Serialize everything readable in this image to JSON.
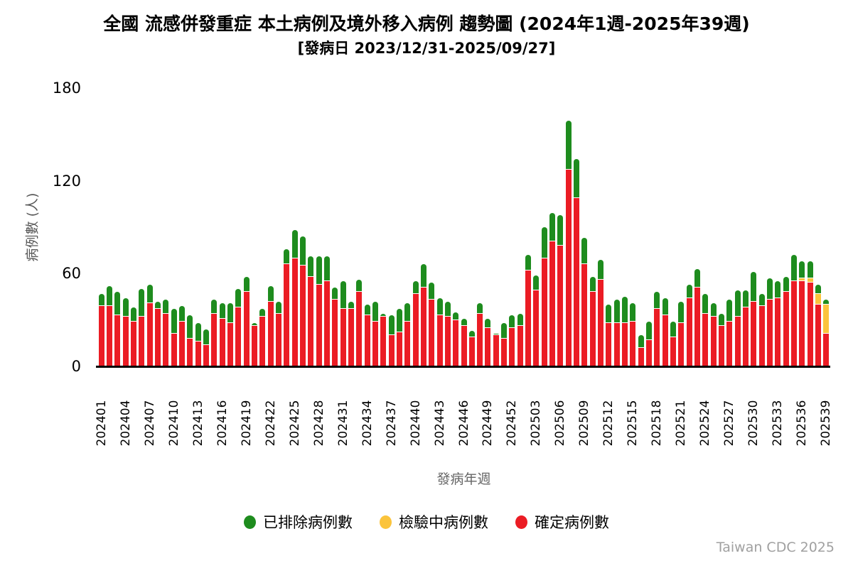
{
  "title": {
    "line1": "全國 流感併發重症 本土病例及境外移入病例 趨勢圖 (2024年1週-2025年39週)",
    "line2": "[發病日 2023/12/31-2025/09/27]"
  },
  "y_axis": {
    "title": "病例數 (人)",
    "ticks": [
      0,
      60,
      120,
      180
    ],
    "max": 180
  },
  "x_axis": {
    "title": "發病年週",
    "tick_every": 3
  },
  "legend": [
    {
      "label": "已排除病例數",
      "color": "#1E8C1E"
    },
    {
      "label": "檢驗中病例數",
      "color": "#FBC43C"
    },
    {
      "label": "確定病例數",
      "color": "#EB1C24"
    }
  ],
  "footer": "Taiwan CDC 2025",
  "chart_data": {
    "type": "bar",
    "stacked": true,
    "grid": false,
    "legend_position": "bottom",
    "ylim": [
      0,
      180
    ],
    "categories": [
      "202401",
      "202402",
      "202403",
      "202404",
      "202405",
      "202406",
      "202407",
      "202408",
      "202409",
      "202410",
      "202411",
      "202412",
      "202413",
      "202414",
      "202415",
      "202416",
      "202417",
      "202418",
      "202419",
      "202420",
      "202421",
      "202422",
      "202423",
      "202424",
      "202425",
      "202426",
      "202427",
      "202428",
      "202429",
      "202430",
      "202431",
      "202432",
      "202433",
      "202434",
      "202435",
      "202436",
      "202437",
      "202438",
      "202439",
      "202440",
      "202441",
      "202442",
      "202443",
      "202444",
      "202445",
      "202446",
      "202447",
      "202448",
      "202449",
      "202450",
      "202451",
      "202452",
      "202501",
      "202502",
      "202503",
      "202504",
      "202505",
      "202506",
      "202507",
      "202508",
      "202509",
      "202510",
      "202511",
      "202512",
      "202513",
      "202514",
      "202515",
      "202516",
      "202517",
      "202518",
      "202519",
      "202520",
      "202521",
      "202522",
      "202523",
      "202524",
      "202525",
      "202526",
      "202527",
      "202528",
      "202529",
      "202530",
      "202531",
      "202532",
      "202533",
      "202534",
      "202535",
      "202536",
      "202537",
      "202538",
      "202539"
    ],
    "x_tick_labels": [
      "202401",
      "202404",
      "202407",
      "202410",
      "202413",
      "202416",
      "202419",
      "202422",
      "202425",
      "202428",
      "202431",
      "202434",
      "202437",
      "202440",
      "202443",
      "202446",
      "202449",
      "202452",
      "202503",
      "202506",
      "202509",
      "202512",
      "202515",
      "202518",
      "202521",
      "202524",
      "202527",
      "202530",
      "202533",
      "202536",
      "202539"
    ],
    "series": [
      {
        "name": "確定病例數",
        "color": "#EB1C24",
        "values": [
          39,
          39,
          33,
          32,
          29,
          32,
          41,
          37,
          34,
          21,
          29,
          18,
          16,
          14,
          34,
          31,
          28,
          38,
          48,
          26,
          32,
          42,
          34,
          66,
          70,
          65,
          58,
          53,
          55,
          43,
          37,
          37,
          48,
          33,
          29,
          32,
          20,
          22,
          29,
          47,
          51,
          43,
          33,
          32,
          30,
          26,
          19,
          34,
          25,
          20,
          18,
          25,
          26,
          62,
          49,
          70,
          81,
          78,
          127,
          109,
          66,
          48,
          56,
          28,
          28,
          28,
          29,
          12,
          17,
          37,
          33,
          19,
          28,
          44,
          51,
          34,
          32,
          26,
          29,
          32,
          38,
          42,
          39,
          43,
          44,
          48,
          55,
          55,
          54,
          40,
          21
        ]
      },
      {
        "name": "檢驗中病例數",
        "color": "#FBC43C",
        "values": [
          0,
          0,
          0,
          0,
          0,
          0,
          0,
          0,
          0,
          0,
          0,
          0,
          0,
          0,
          0,
          0,
          0,
          0,
          0,
          0,
          0,
          0,
          0,
          0,
          0,
          0,
          0,
          0,
          0,
          0,
          0,
          0,
          0,
          0,
          0,
          0,
          0,
          0,
          0,
          0,
          0,
          0,
          0,
          0,
          0,
          0,
          0,
          0,
          0,
          0,
          0,
          0,
          0,
          0,
          0,
          0,
          0,
          0,
          0,
          0,
          0,
          0,
          0,
          0,
          0,
          0,
          0,
          0,
          0,
          0,
          0,
          0,
          0,
          0,
          0,
          0,
          0,
          0,
          0,
          0,
          0,
          0,
          0,
          0,
          0,
          0,
          0,
          2,
          3,
          7,
          19
        ]
      },
      {
        "name": "已排除病例數",
        "color": "#1E8C1E",
        "values": [
          8,
          13,
          15,
          12,
          9,
          18,
          12,
          5,
          9,
          16,
          10,
          15,
          12,
          10,
          9,
          10,
          13,
          12,
          10,
          2,
          5,
          10,
          8,
          10,
          18,
          19,
          13,
          18,
          16,
          8,
          18,
          5,
          8,
          7,
          13,
          2,
          13,
          15,
          12,
          8,
          15,
          11,
          11,
          10,
          5,
          5,
          4,
          7,
          6,
          1,
          10,
          8,
          8,
          10,
          10,
          20,
          18,
          20,
          32,
          25,
          17,
          10,
          13,
          12,
          15,
          17,
          12,
          8,
          12,
          11,
          11,
          10,
          14,
          9,
          12,
          13,
          9,
          8,
          14,
          17,
          11,
          19,
          8,
          14,
          11,
          10,
          17,
          11,
          11,
          6,
          3
        ]
      }
    ]
  }
}
